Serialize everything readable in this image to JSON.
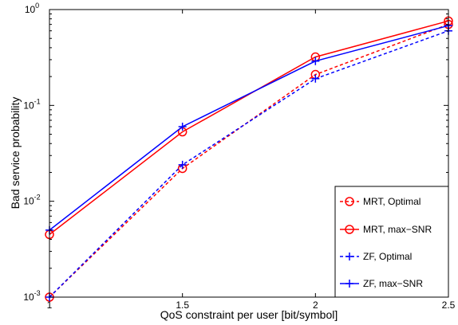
{
  "chart_data": {
    "type": "line",
    "title": "",
    "xlabel": "QoS constraint per user [bit/symbol]",
    "ylabel": "Bad service probability",
    "xlim": [
      1,
      2.5
    ],
    "ylim": [
      0.001,
      1
    ],
    "yscale": "log",
    "grid": false,
    "legend_position": "bottom-right",
    "x": [
      1,
      1.5,
      2,
      2.5
    ],
    "xticks": [
      {
        "value": 1,
        "label": "1"
      },
      {
        "value": 1.5,
        "label": "1.5"
      },
      {
        "value": 2,
        "label": "2"
      },
      {
        "value": 2.5,
        "label": "2.5"
      }
    ],
    "yticks": [
      {
        "value": 0.001,
        "base": "10",
        "exp": "-3"
      },
      {
        "value": 0.01,
        "base": "10",
        "exp": "-2"
      },
      {
        "value": 0.1,
        "base": "10",
        "exp": "-1"
      },
      {
        "value": 1,
        "base": "10",
        "exp": "0"
      }
    ],
    "series": [
      {
        "name": "MRT, Optimal",
        "color": "#ff0000",
        "dash": "dashed",
        "marker": "circle",
        "values": [
          0.001,
          0.022,
          0.21,
          0.7
        ]
      },
      {
        "name": "MRT, max−SNR",
        "color": "#ff0000",
        "dash": "solid",
        "marker": "circle",
        "values": [
          0.0045,
          0.053,
          0.32,
          0.76
        ]
      },
      {
        "name": "ZF, Optimal",
        "color": "#0000ff",
        "dash": "dashed",
        "marker": "plus",
        "values": [
          0.001,
          0.024,
          0.19,
          0.6
        ]
      },
      {
        "name": "ZF, max−SNR",
        "color": "#0000ff",
        "dash": "solid",
        "marker": "plus",
        "values": [
          0.005,
          0.06,
          0.29,
          0.68
        ]
      }
    ]
  }
}
